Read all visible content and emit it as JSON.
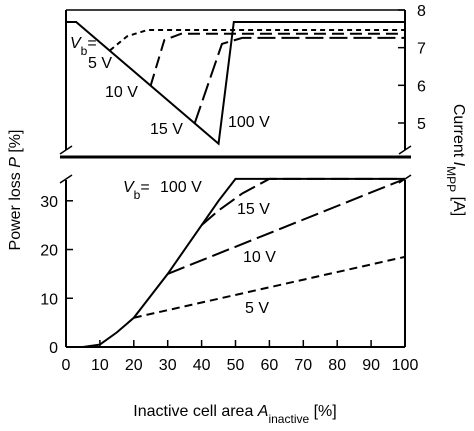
{
  "chart_data": [
    {
      "type": "line",
      "xlim": [
        0,
        100
      ],
      "y2lim": [
        4.15,
        8
      ],
      "y2ticks": [
        5,
        6,
        7,
        8
      ],
      "y2_label": {
        "text": "Current ",
        "var": "I",
        "sub": "MPP",
        "unit": " [A]"
      },
      "vb_label": {
        "var": "V",
        "sub": "b",
        "eq": "="
      },
      "series": [
        {
          "name": "5 V",
          "axis": "y2",
          "color": "#000000",
          "dash": "5,4",
          "x": [
            13,
            18,
            24,
            100
          ],
          "values": [
            6.93,
            7.3,
            7.47,
            7.47
          ]
        },
        {
          "name": "10 V",
          "axis": "y2",
          "color": "#000000",
          "dash": "12,6",
          "x": [
            25,
            29,
            34,
            100
          ],
          "values": [
            6.0,
            7.2,
            7.37,
            7.37
          ]
        },
        {
          "name": "15 V",
          "axis": "y2",
          "color": "#000000",
          "dash": "18,6",
          "x": [
            38,
            46,
            52,
            100
          ],
          "values": [
            5.0,
            7.1,
            7.26,
            7.26
          ]
        },
        {
          "name": "100 V",
          "axis": "y2",
          "color": "#000000",
          "dash": "none",
          "x": [
            0,
            3,
            45,
            49.5,
            100
          ],
          "values": [
            7.68,
            7.68,
            4.45,
            7.68,
            7.68
          ]
        }
      ]
    },
    {
      "type": "line",
      "xlim": [
        0,
        100
      ],
      "xticks": [
        0,
        10,
        20,
        30,
        40,
        50,
        60,
        70,
        80,
        90,
        100
      ],
      "ylim": [
        0,
        35.5
      ],
      "yticks": [
        0,
        10,
        20,
        30
      ],
      "x_label": {
        "text": "Inactive cell area ",
        "var": "A",
        "sub": "inactive",
        "unit": " [%]"
      },
      "y_label": {
        "text": "Power loss ",
        "var": "P",
        "unit": " [%]"
      },
      "vb_label": {
        "var": "V",
        "sub": "b",
        "eq": "="
      },
      "series": [
        {
          "name": "100 V",
          "color": "#000000",
          "dash": "none",
          "x": [
            0,
            5,
            10,
            15,
            20,
            30,
            40,
            45,
            50,
            100
          ],
          "values": [
            0,
            0,
            0.5,
            3,
            6,
            15,
            25,
            30,
            34.5,
            34.5
          ]
        },
        {
          "name": "15 V",
          "color": "#000000",
          "dash": "18,6",
          "x": [
            40,
            45,
            52,
            60,
            100
          ],
          "values": [
            25,
            28,
            31.5,
            34.5,
            34.5
          ]
        },
        {
          "name": "10 V",
          "color": "#000000",
          "dash": "18,6",
          "x": [
            30,
            100
          ],
          "values": [
            15,
            34.5
          ]
        },
        {
          "name": "5 V",
          "color": "#000000",
          "dash": "8,5",
          "x": [
            20,
            100
          ],
          "values": [
            6,
            18.5
          ]
        }
      ]
    }
  ]
}
